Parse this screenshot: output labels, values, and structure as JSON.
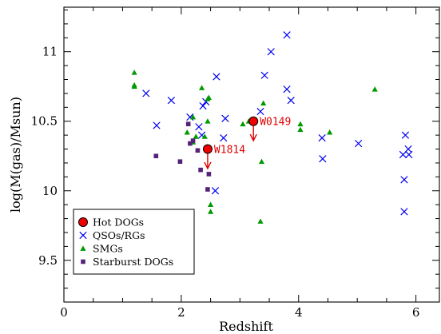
{
  "chart_data": {
    "type": "scatter",
    "xlabel": "Redshift",
    "ylabel": "log(M(gas)/Msun)",
    "xlim": [
      0,
      6.4
    ],
    "ylim": [
      9.2,
      11.32
    ],
    "xticks": [
      0,
      2,
      4,
      6
    ],
    "yticks": [
      9.5,
      10,
      10.5,
      11
    ],
    "grid": false,
    "legend_position": "bottom-left",
    "colors": {
      "hot_dogs": "#ee0000",
      "qsos": "#0000ee",
      "smgs": "#009900",
      "starburst": "#552277",
      "annotation": "#e00000"
    },
    "series": [
      {
        "name": "Hot DOGs",
        "marker": "circle",
        "points": [
          [
            3.23,
            10.5
          ],
          [
            2.45,
            10.3
          ]
        ]
      },
      {
        "name": "QSOs/RGs",
        "marker": "cross",
        "points": [
          [
            1.4,
            10.7
          ],
          [
            1.83,
            10.65
          ],
          [
            2.15,
            10.53
          ],
          [
            1.58,
            10.47
          ],
          [
            2.3,
            10.46
          ],
          [
            2.37,
            10.61
          ],
          [
            2.42,
            10.64
          ],
          [
            2.6,
            10.82
          ],
          [
            2.35,
            10.4
          ],
          [
            2.75,
            10.52
          ],
          [
            2.72,
            10.38
          ],
          [
            3.35,
            10.57
          ],
          [
            3.42,
            10.83
          ],
          [
            3.53,
            11.0
          ],
          [
            3.8,
            11.12
          ],
          [
            3.8,
            10.73
          ],
          [
            3.87,
            10.65
          ],
          [
            4.4,
            10.38
          ],
          [
            4.41,
            10.23
          ],
          [
            5.02,
            10.34
          ],
          [
            5.78,
            10.26
          ],
          [
            5.82,
            10.4
          ],
          [
            5.87,
            10.3
          ],
          [
            5.88,
            10.26
          ],
          [
            5.8,
            10.08
          ],
          [
            5.8,
            9.85
          ],
          [
            2.58,
            10.0
          ]
        ]
      },
      {
        "name": "SMGs",
        "marker": "triangle",
        "points": [
          [
            1.2,
            10.85
          ],
          [
            1.2,
            10.76
          ],
          [
            1.2,
            10.75
          ],
          [
            2.2,
            10.53
          ],
          [
            2.35,
            10.74
          ],
          [
            2.45,
            10.66
          ],
          [
            2.47,
            10.67
          ],
          [
            2.1,
            10.42
          ],
          [
            2.2,
            10.35
          ],
          [
            2.25,
            10.39
          ],
          [
            2.4,
            10.39
          ],
          [
            3.05,
            10.48
          ],
          [
            3.15,
            10.5
          ],
          [
            3.37,
            10.21
          ],
          [
            3.4,
            10.63
          ],
          [
            4.03,
            10.48
          ],
          [
            4.03,
            10.44
          ],
          [
            4.53,
            10.42
          ],
          [
            5.3,
            10.73
          ],
          [
            2.5,
            9.9
          ],
          [
            2.5,
            9.85
          ],
          [
            3.35,
            9.78
          ],
          [
            2.45,
            10.5
          ]
        ]
      },
      {
        "name": "Starburst DOGs",
        "marker": "square",
        "points": [
          [
            1.57,
            10.25
          ],
          [
            1.98,
            10.21
          ],
          [
            2.12,
            10.48
          ],
          [
            2.15,
            10.34
          ],
          [
            2.2,
            10.36
          ],
          [
            2.28,
            10.29
          ],
          [
            2.33,
            10.15
          ],
          [
            2.45,
            10.01
          ],
          [
            2.47,
            10.12
          ]
        ]
      }
    ],
    "annotations": [
      {
        "text": "W0149",
        "x": 3.23,
        "y": 10.5,
        "arrow_to": 10.36
      },
      {
        "text": "W1814",
        "x": 2.45,
        "y": 10.3,
        "arrow_to": 10.16
      }
    ]
  }
}
